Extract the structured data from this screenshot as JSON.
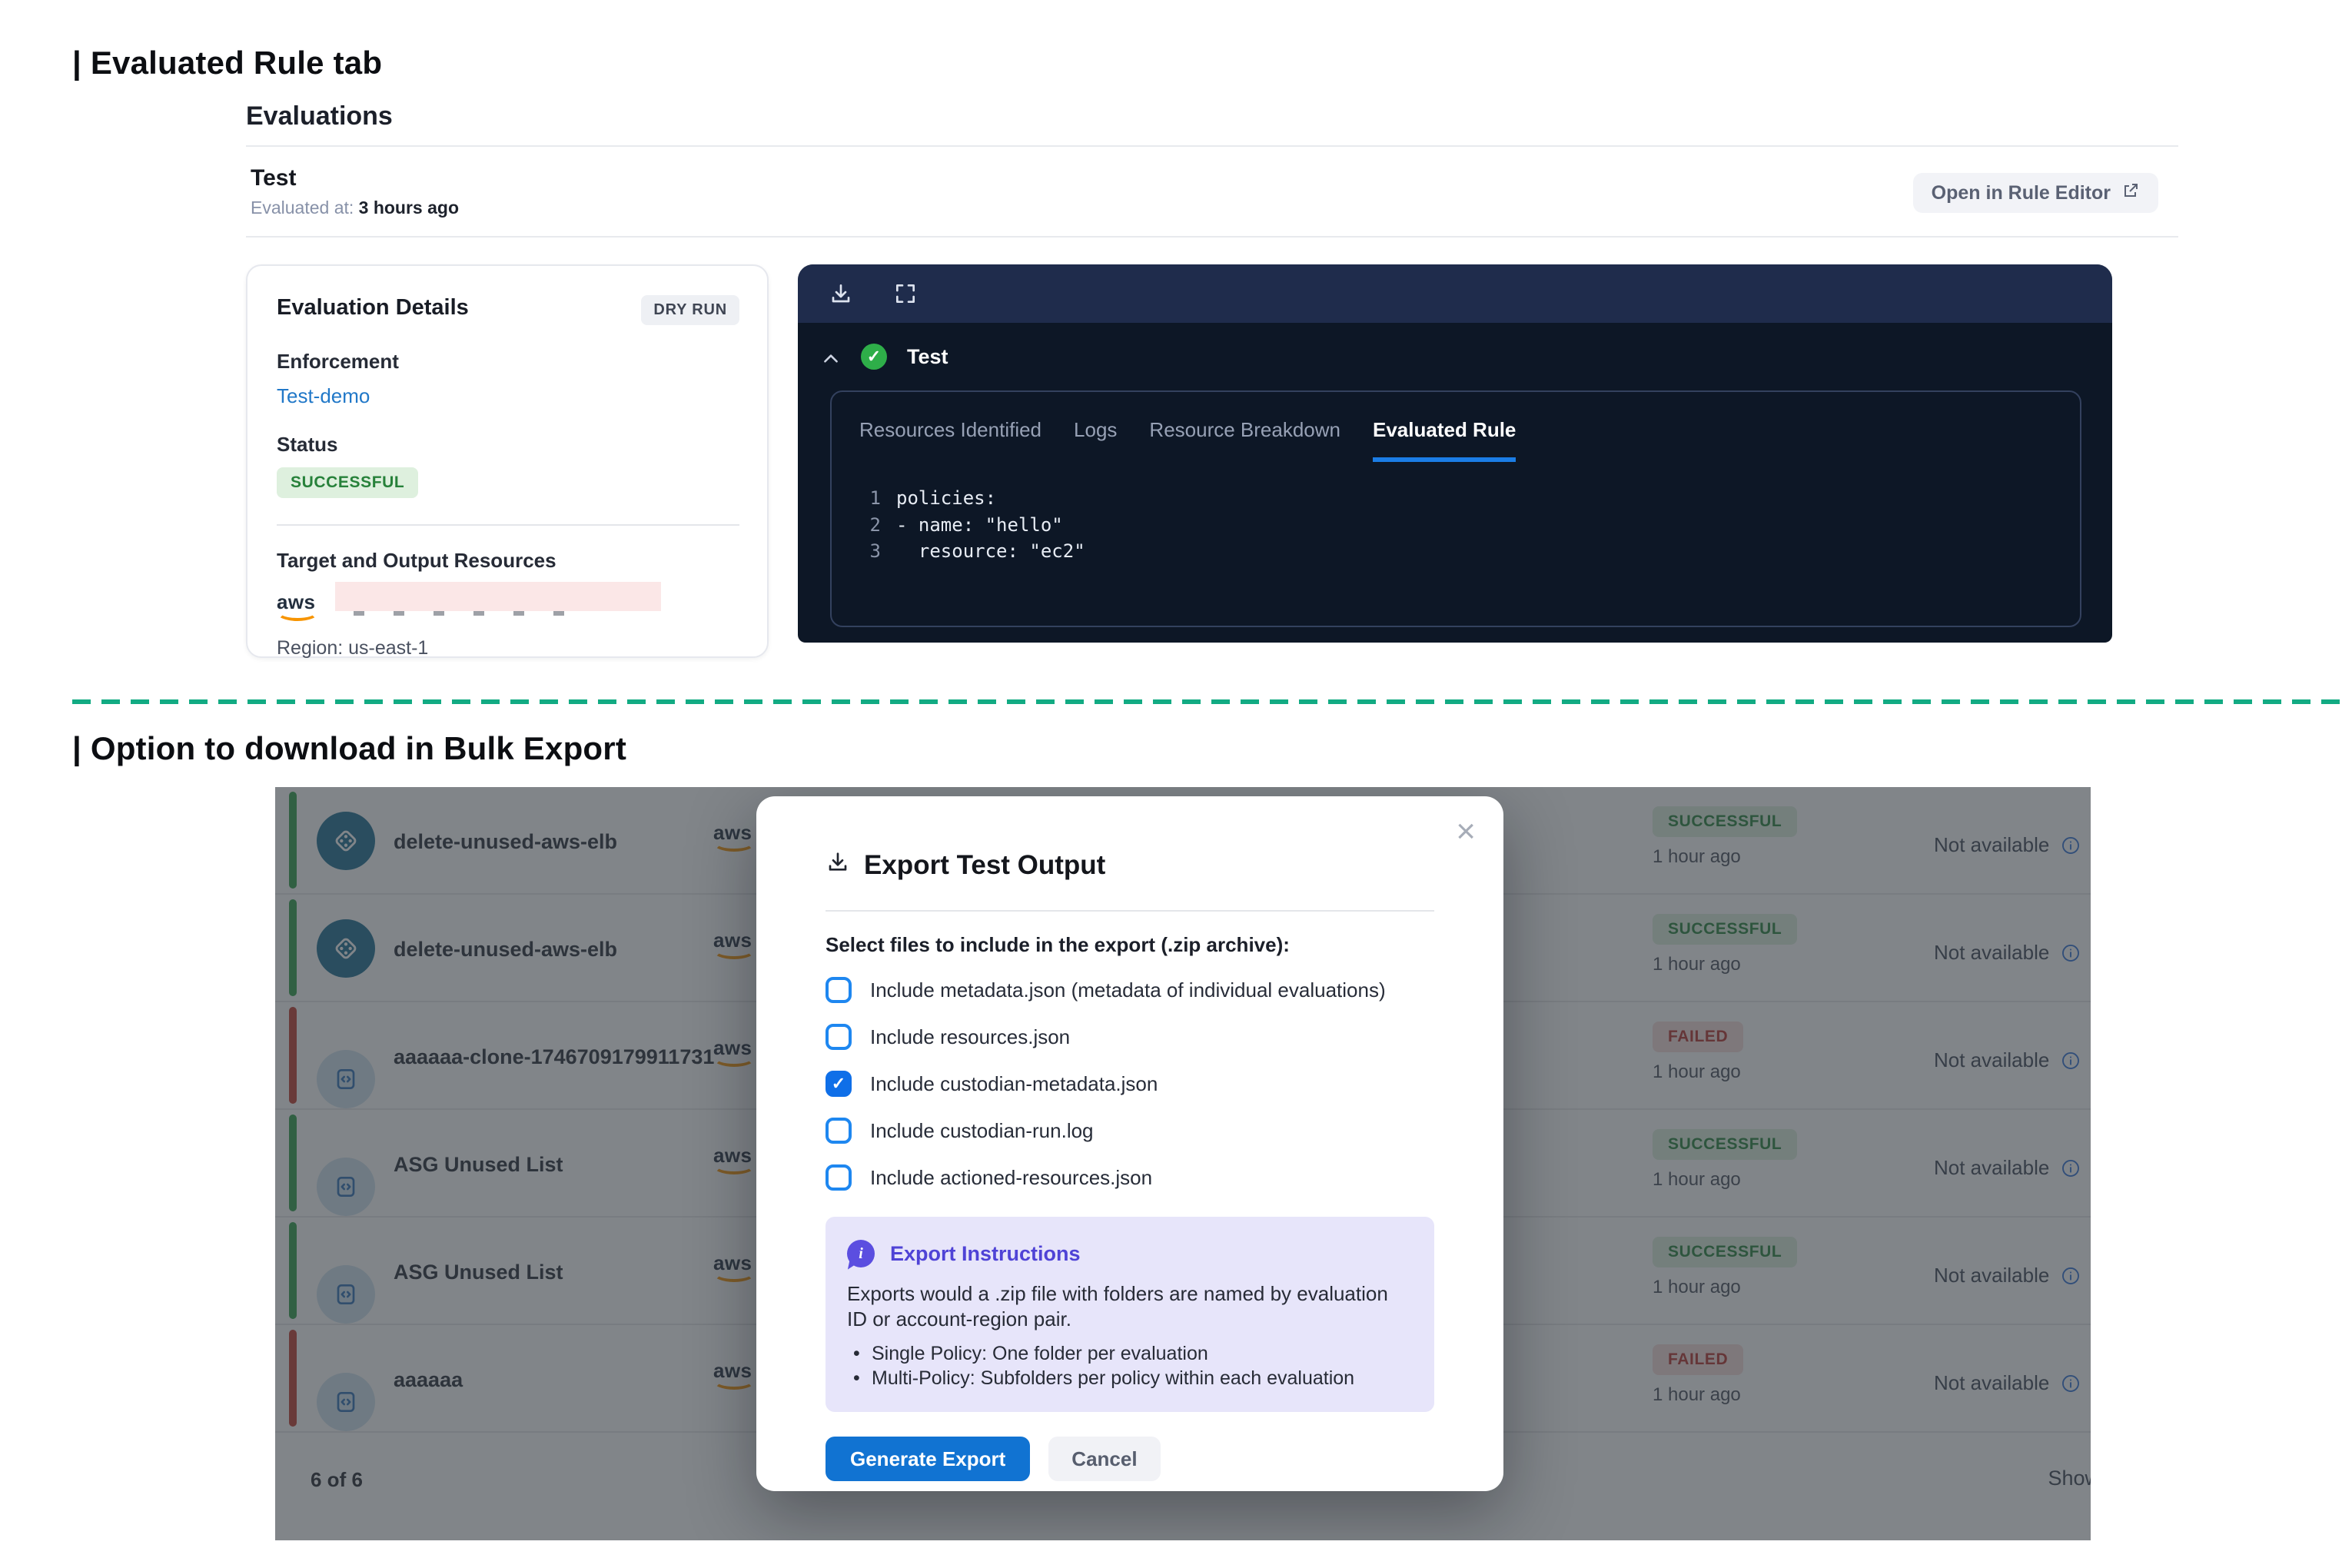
{
  "page": {
    "section1_title": "| Evaluated Rule tab",
    "section2_title": "| Option to download in Bulk Export"
  },
  "evaluations": {
    "header": "Evaluations",
    "eval_name": "Test",
    "evaluated_at_label": "Evaluated at:",
    "evaluated_at_value": "3 hours ago",
    "open_in_rule_editor": "Open in Rule Editor",
    "details": {
      "title": "Evaluation Details",
      "badge": "DRY RUN",
      "enforcement_label": "Enforcement",
      "enforcement_value": "Test-demo",
      "status_label": "Status",
      "status_value": "SUCCESSFUL",
      "target_label": "Target and Output Resources",
      "aws_logo": "aws",
      "region": "Region: us-east-1"
    },
    "viewer": {
      "group_name": "Test",
      "group_status_icon": "check-circle",
      "tabs": [
        "Resources Identified",
        "Logs",
        "Resource Breakdown",
        "Evaluated Rule"
      ],
      "active_tab": "Evaluated Rule",
      "code_lines": [
        {
          "num": "1",
          "text": "policies:"
        },
        {
          "num": "2",
          "text": "- name: \"hello\""
        },
        {
          "num": "3",
          "text": "  resource: \"ec2\""
        }
      ]
    }
  },
  "bulk_export": {
    "table": {
      "aws_logo": "aws",
      "rows": [
        {
          "name": "delete-unused-aws-elb",
          "icon": "grid",
          "accent": "green",
          "status": "SUCCESSFUL",
          "time": "1 hour ago",
          "report": "Not available"
        },
        {
          "name": "delete-unused-aws-elb",
          "icon": "grid",
          "accent": "green",
          "status": "SUCCESSFUL",
          "time": "1 hour ago",
          "report": "Not available"
        },
        {
          "name": "aaaaaa-clone-1746709179911731",
          "icon": "code",
          "accent": "red",
          "status": "FAILED",
          "time": "1 hour ago",
          "report": "Not available"
        },
        {
          "name": "ASG Unused List",
          "icon": "code",
          "accent": "green",
          "status": "SUCCESSFUL",
          "time": "1 hour ago",
          "report": "Not available"
        },
        {
          "name": "ASG Unused List",
          "icon": "code",
          "accent": "green",
          "status": "SUCCESSFUL",
          "time": "1 hour ago",
          "report": "Not available"
        },
        {
          "name": "aaaaaa",
          "icon": "code",
          "accent": "red",
          "status": "FAILED",
          "time": "1 hour ago",
          "report": "Not available"
        }
      ],
      "footer_left": "6 of 6",
      "footer_right": "Show"
    },
    "modal": {
      "title": "Export Test Output",
      "select_label": "Select files to include in the export (.zip archive):",
      "checkboxes": [
        {
          "label": "Include metadata.json (metadata of individual evaluations)",
          "checked": false
        },
        {
          "label": "Include resources.json",
          "checked": false
        },
        {
          "label": "Include custodian-metadata.json",
          "checked": true
        },
        {
          "label": "Include custodian-run.log",
          "checked": false
        },
        {
          "label": "Include actioned-resources.json",
          "checked": false
        }
      ],
      "instructions": {
        "title": "Export Instructions",
        "body": "Exports would a .zip file with folders are named by evaluation ID or account-region pair.",
        "bullets": [
          "Single Policy: One folder per evaluation",
          "Multi-Policy: Subfolders per policy within each evaluation"
        ]
      },
      "generate_button": "Generate Export",
      "cancel_button": "Cancel",
      "close_icon": "×"
    }
  },
  "colors": {
    "dashed_separator": "#12ab83",
    "primary_button": "#1173d2",
    "checkbox_blue": "#1e87f0",
    "info_purple": "#5b4ee0",
    "success_text": "#27813a",
    "success_bg": "#def0de",
    "failed_text": "#b5312a",
    "failed_bg": "#f7dddb",
    "link_blue": "#2178c8",
    "tab_underline": "#1b7de5",
    "viewer_toolbar": "#1f2c4c",
    "viewer_body": "#0d1726",
    "accent_green": "#2f9e47",
    "accent_red": "#bf3a2d",
    "aws_orange": "#f79400"
  }
}
